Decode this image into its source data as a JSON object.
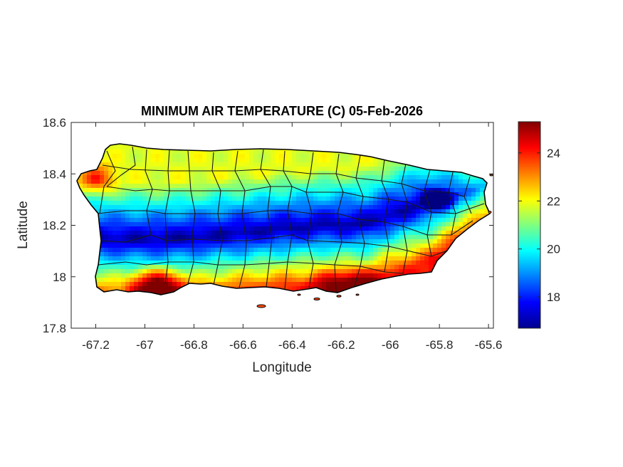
{
  "chart_data": {
    "type": "heatmap",
    "title": "MINIMUM AIR TEMPERATURE (C) 05-Feb-2026",
    "xlabel": "Longitude",
    "ylabel": "Latitude",
    "xlim": [
      -67.3,
      -65.58
    ],
    "ylim": [
      17.8,
      18.6
    ],
    "xticks": [
      -67.2,
      -67,
      -66.8,
      -66.6,
      -66.4,
      -66.2,
      -66,
      -65.8,
      -65.6
    ],
    "xtick_labels": [
      "-67.2",
      "-67",
      "-66.8",
      "-66.6",
      "-66.4",
      "-66.2",
      "-66",
      "-65.8",
      "-65.6"
    ],
    "yticks": [
      17.8,
      18,
      18.2,
      18.4,
      18.6
    ],
    "ytick_labels": [
      "17.8",
      "18",
      "18.2",
      "18.4",
      "18.6"
    ],
    "colormap": "jet",
    "color_range": [
      16.7,
      25.3
    ],
    "colorbar_ticks": [
      18,
      20,
      22,
      24
    ],
    "colorbar_tick_labels": [
      "18",
      "20",
      "22",
      "24"
    ],
    "grid": false,
    "features": {
      "region": "Puerto Rico",
      "coldest_band": "central mountain range (~17 C)",
      "warmest_areas": "southwest coast, south coast, east coast (~24-25 C)"
    }
  }
}
